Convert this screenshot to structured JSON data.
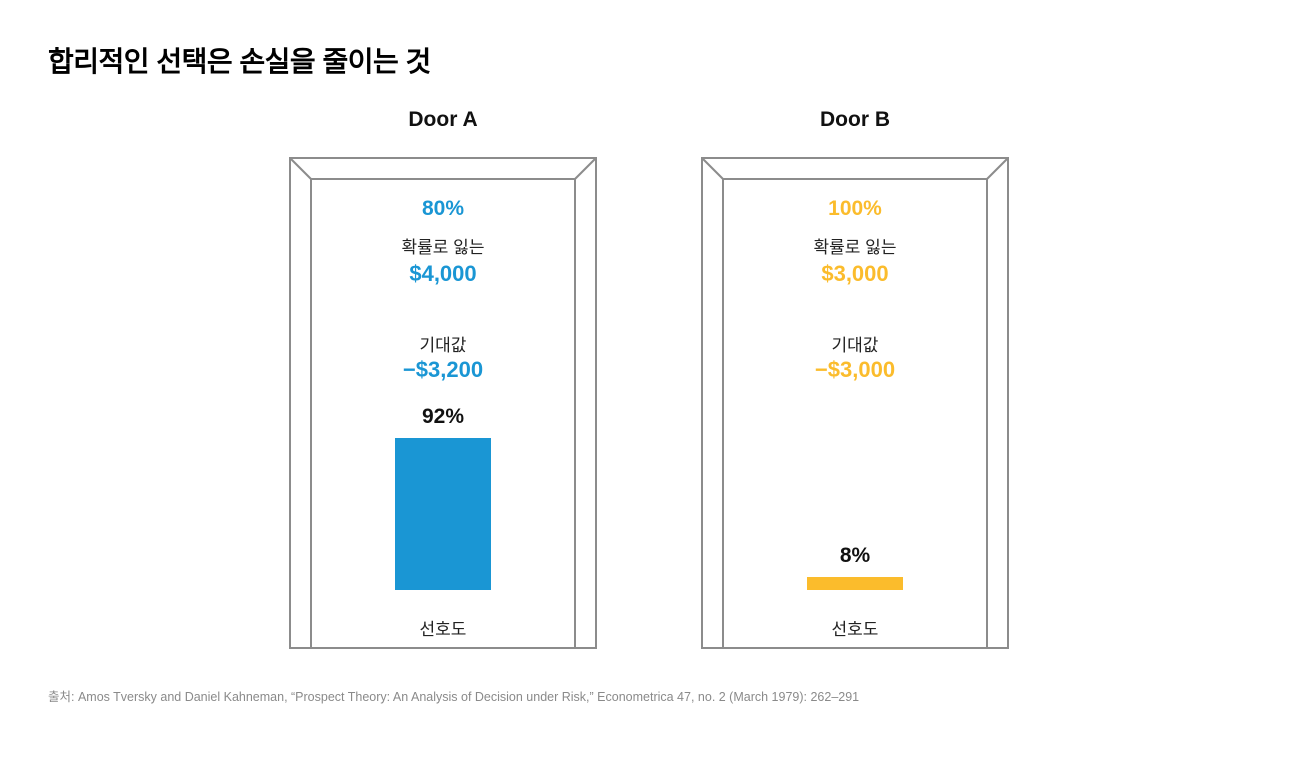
{
  "title": "합리적인 선택은 손실을 줄이는 것",
  "source": "출처: Amos Tversky and Daniel Kahneman, “Prospect Theory: An Analysis of Decision under Risk,” Econometrica 47, no. 2 (March 1979): 262–291",
  "chart_data": {
    "type": "bar",
    "categories": [
      "Door A",
      "Door B"
    ],
    "values": [
      92,
      8
    ],
    "value_labels": [
      "92%",
      "8%"
    ],
    "ylim": [
      0,
      100
    ],
    "bar_label": "선호도",
    "colors": [
      "#1a96d4",
      "#fbbc2c"
    ]
  },
  "doors": [
    {
      "name": "Door A",
      "probability": "80%",
      "lose_label": "확률로 잃는",
      "amount": "$4,000",
      "ev_label": "기대값",
      "ev_value": "−$3,200",
      "preference": "92%",
      "preference_label": "선호도",
      "color": "#1a96d4"
    },
    {
      "name": "Door B",
      "probability": "100%",
      "lose_label": "확률로 잃는",
      "amount": "$3,000",
      "ev_label": "기대값",
      "ev_value": "−$3,000",
      "preference": "8%",
      "preference_label": "선호도",
      "color": "#fbbc2c"
    }
  ]
}
